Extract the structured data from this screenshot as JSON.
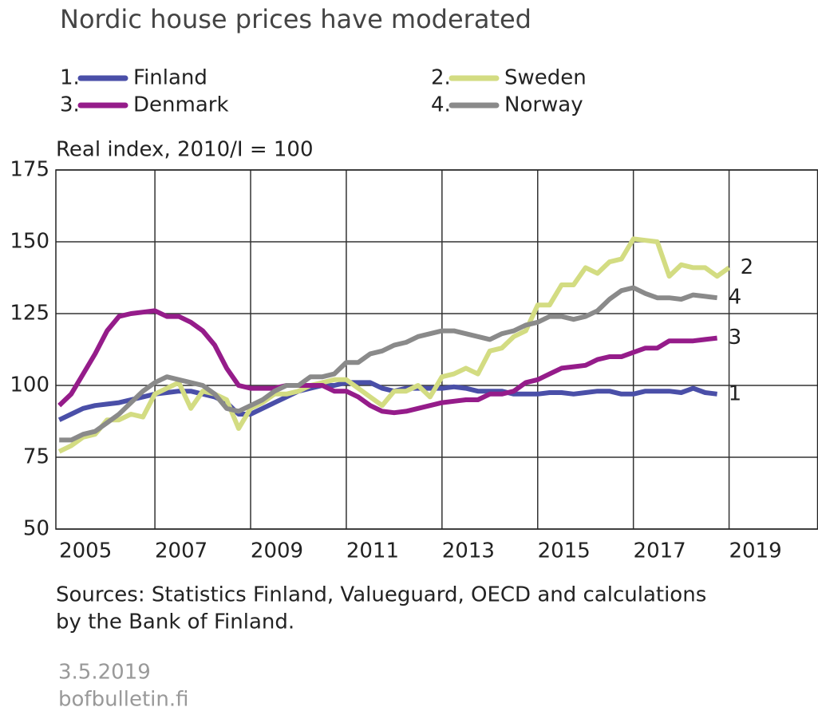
{
  "chart_data": {
    "type": "line",
    "title": "Nordic house prices have moderated",
    "y_label": "Real index, 2010/I = 100",
    "source": [
      "Sources: Statistics Finland, Valueguard, OECD and calculations",
      "by the Bank of Finland."
    ],
    "date": "3.5.2019",
    "site": "bofbulletin.fi",
    "x": [
      2005,
      2005.25,
      2005.5,
      2005.75,
      2006,
      2006.25,
      2006.5,
      2006.75,
      2007,
      2007.25,
      2007.5,
      2007.75,
      2008,
      2008.25,
      2008.5,
      2008.75,
      2009,
      2009.25,
      2009.5,
      2009.75,
      2010,
      2010.25,
      2010.5,
      2010.75,
      2011,
      2011.25,
      2011.5,
      2011.75,
      2012,
      2012.25,
      2012.5,
      2012.75,
      2013,
      2013.25,
      2013.5,
      2013.75,
      2014,
      2014.25,
      2014.5,
      2014.75,
      2015,
      2015.25,
      2015.5,
      2015.75,
      2016,
      2016.25,
      2016.5,
      2016.75,
      2017,
      2017.25,
      2017.5,
      2017.75,
      2018,
      2018.25,
      2018.5,
      2018.75,
      2019
    ],
    "series": [
      {
        "name": "Finland",
        "legend_prefix": "1.",
        "end_label": "1",
        "color": "#4a4fa8",
        "values": [
          88,
          90,
          92,
          93,
          93.5,
          94,
          95,
          96,
          97,
          97.5,
          98,
          98,
          97,
          96,
          94,
          90,
          90,
          92,
          94,
          96,
          98,
          99,
          100,
          100,
          101,
          101,
          101,
          99,
          98,
          99,
          99,
          99,
          99,
          99.5,
          99,
          98,
          98,
          98,
          97,
          97,
          97,
          97.5,
          97.5,
          97,
          97.5,
          98,
          98,
          97,
          97,
          98,
          98,
          98,
          97.5,
          99,
          97.5,
          97,
          null
        ]
      },
      {
        "name": "Sweden",
        "legend_prefix": "2.",
        "end_label": "2",
        "color": "#d3dc82",
        "values": [
          77,
          79,
          82,
          83,
          88,
          88,
          90,
          89,
          97,
          99,
          101,
          92,
          98,
          97,
          95,
          85,
          92,
          94,
          97,
          97,
          98,
          100,
          101,
          102,
          102,
          99,
          96,
          93,
          98,
          98,
          100,
          96,
          103,
          104,
          106,
          104,
          112,
          113,
          117,
          119,
          128,
          128,
          135,
          135,
          141,
          139,
          143,
          144,
          151,
          150.5,
          150,
          138,
          142,
          141,
          141,
          138,
          141
        ]
      },
      {
        "name": "Denmark",
        "legend_prefix": "3.",
        "end_label": "3",
        "color": "#951c8a",
        "values": [
          93,
          97,
          104,
          111,
          119,
          124,
          125,
          125.5,
          126,
          124,
          124,
          122,
          119,
          114,
          106,
          100,
          99,
          99,
          99,
          100,
          100,
          100,
          100,
          98,
          98,
          96,
          93,
          91,
          90.5,
          91,
          92,
          93,
          94,
          94.5,
          95,
          95,
          97,
          97,
          98,
          101,
          102,
          104,
          106,
          106.5,
          107,
          109,
          110,
          110,
          111.5,
          113,
          113,
          115.5,
          115.5,
          115.5,
          116,
          116.5,
          null
        ]
      },
      {
        "name": "Norway",
        "legend_prefix": "4.",
        "end_label": "4",
        "color": "#8a8a8a",
        "values": [
          81,
          81,
          83,
          84,
          87,
          90,
          94,
          98,
          101,
          103,
          102,
          101,
          100,
          97,
          92,
          91,
          93,
          95,
          98,
          100,
          100,
          103,
          103,
          104,
          108,
          108,
          111,
          112,
          114,
          115,
          117,
          118,
          119,
          119,
          118,
          117,
          116,
          118,
          119,
          121,
          122,
          124,
          124,
          123,
          124,
          126,
          130,
          133,
          134,
          132,
          130.5,
          130.5,
          130,
          131.5,
          131,
          130.5,
          null
        ]
      }
    ],
    "xlim": [
      2004.93,
      2020.85
    ],
    "xticks": [
      {
        "value": 2005.55,
        "label": "2005"
      },
      {
        "value": 2007.55,
        "label": "2007"
      },
      {
        "value": 2009.55,
        "label": "2009"
      },
      {
        "value": 2011.55,
        "label": "2011"
      },
      {
        "value": 2013.55,
        "label": "2013"
      },
      {
        "value": 2015.55,
        "label": "2015"
      },
      {
        "value": 2017.55,
        "label": "2017"
      },
      {
        "value": 2019.55,
        "label": "2019"
      }
    ],
    "xgrid": [
      2007,
      2009,
      2011,
      2013,
      2015,
      2017,
      2019
    ],
    "ylim": [
      50,
      175
    ],
    "yticks": [
      50,
      75,
      100,
      125,
      150,
      175
    ],
    "grid": true
  }
}
